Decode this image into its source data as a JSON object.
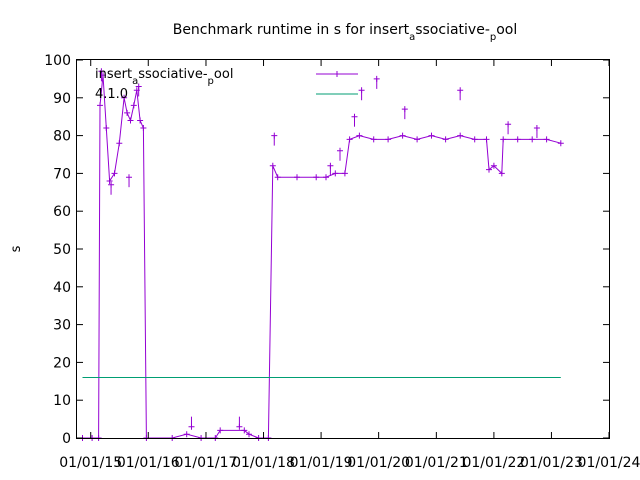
{
  "chart_data": {
    "type": "line",
    "title": "Benchmark runtime in s for insert_associative_pool",
    "title_parts": {
      "main": "Benchmark runtime in s for insert",
      "sub1": "a",
      "mid": "ssociative-",
      "sub2": "p",
      "tail": "ool"
    },
    "xlabel": "",
    "ylabel": "s",
    "ylim": [
      0,
      100
    ],
    "yticks": [
      0,
      10,
      20,
      30,
      40,
      50,
      60,
      70,
      80,
      90,
      100
    ],
    "xlim": [
      "2014-10-06",
      "2024-01-01"
    ],
    "xticks": [
      "01/01/15",
      "01/01/16",
      "01/01/17",
      "01/01/18",
      "01/01/19",
      "01/01/20",
      "01/01/21",
      "01/01/22",
      "01/01/23",
      "01/01/24"
    ],
    "grid": false,
    "legend_position": "top",
    "series": [
      {
        "name": "insert_associative_pool",
        "name_parts": {
          "main": "insert",
          "sub1": "a",
          "mid": "ssociative-",
          "sub2": "p",
          "tail": "ool"
        },
        "color": "#9400d3",
        "marker": "+",
        "points": [
          [
            "2014-11-10",
            0
          ],
          [
            "2015-01-10",
            0
          ],
          [
            "2015-02-20",
            0
          ],
          [
            "2015-03-01",
            88
          ],
          [
            "2015-03-20",
            96
          ],
          [
            "2015-04-10",
            82
          ],
          [
            "2015-05-01",
            68
          ],
          [
            "2015-06-01",
            70
          ],
          [
            "2015-07-01",
            78
          ],
          [
            "2015-08-01",
            90
          ],
          [
            "2015-08-20",
            86
          ],
          [
            "2015-09-10",
            84
          ],
          [
            "2015-10-01",
            88
          ],
          [
            "2015-10-20",
            92
          ],
          [
            "2015-11-10",
            84
          ],
          [
            "2015-12-01",
            82
          ],
          [
            "2015-12-20",
            0
          ],
          [
            "2016-06-01",
            0
          ],
          [
            "2016-09-01",
            1
          ],
          [
            "2016-12-01",
            0
          ],
          [
            "2017-03-01",
            0
          ],
          [
            "2017-04-01",
            2
          ],
          [
            "2017-09-01",
            2
          ],
          [
            "2017-10-01",
            1
          ],
          [
            "2017-12-01",
            0
          ],
          [
            "2018-02-01",
            0
          ],
          [
            "2018-03-01",
            72
          ],
          [
            "2018-04-01",
            69
          ],
          [
            "2018-08-01",
            69
          ],
          [
            "2018-12-01",
            69
          ],
          [
            "2019-02-01",
            69
          ],
          [
            "2019-04-01",
            70
          ],
          [
            "2019-06-01",
            70
          ],
          [
            "2019-07-01",
            79
          ],
          [
            "2019-09-01",
            80
          ],
          [
            "2019-12-01",
            79
          ],
          [
            "2020-03-01",
            79
          ],
          [
            "2020-06-01",
            80
          ],
          [
            "2020-09-01",
            79
          ],
          [
            "2020-12-01",
            80
          ],
          [
            "2021-03-01",
            79
          ],
          [
            "2021-06-01",
            80
          ],
          [
            "2021-09-01",
            79
          ],
          [
            "2021-11-15",
            79
          ],
          [
            "2021-12-01",
            71
          ],
          [
            "2022-01-01",
            72
          ],
          [
            "2022-02-20",
            70
          ],
          [
            "2022-03-01",
            79
          ],
          [
            "2022-06-01",
            79
          ],
          [
            "2022-09-01",
            79
          ],
          [
            "2022-12-01",
            79
          ],
          [
            "2023-03-01",
            78
          ]
        ],
        "spikes": [
          [
            "2015-03-10",
            97
          ],
          [
            "2015-05-10",
            67
          ],
          [
            "2015-09-01",
            69
          ],
          [
            "2015-11-01",
            93
          ],
          [
            "2016-10-01",
            3
          ],
          [
            "2017-08-01",
            3
          ],
          [
            "2018-03-10",
            80
          ],
          [
            "2019-03-01",
            72
          ],
          [
            "2019-05-01",
            76
          ],
          [
            "2019-08-01",
            85
          ],
          [
            "2019-09-15",
            92
          ],
          [
            "2019-12-20",
            95
          ],
          [
            "2020-06-15",
            87
          ],
          [
            "2021-06-01",
            92
          ],
          [
            "2022-04-01",
            83
          ],
          [
            "2022-10-01",
            82
          ]
        ]
      },
      {
        "name": "4.1.0",
        "color": "#009e73",
        "marker": "",
        "points": [
          [
            "2014-11-10",
            16
          ],
          [
            "2023-03-01",
            16
          ]
        ]
      }
    ]
  }
}
